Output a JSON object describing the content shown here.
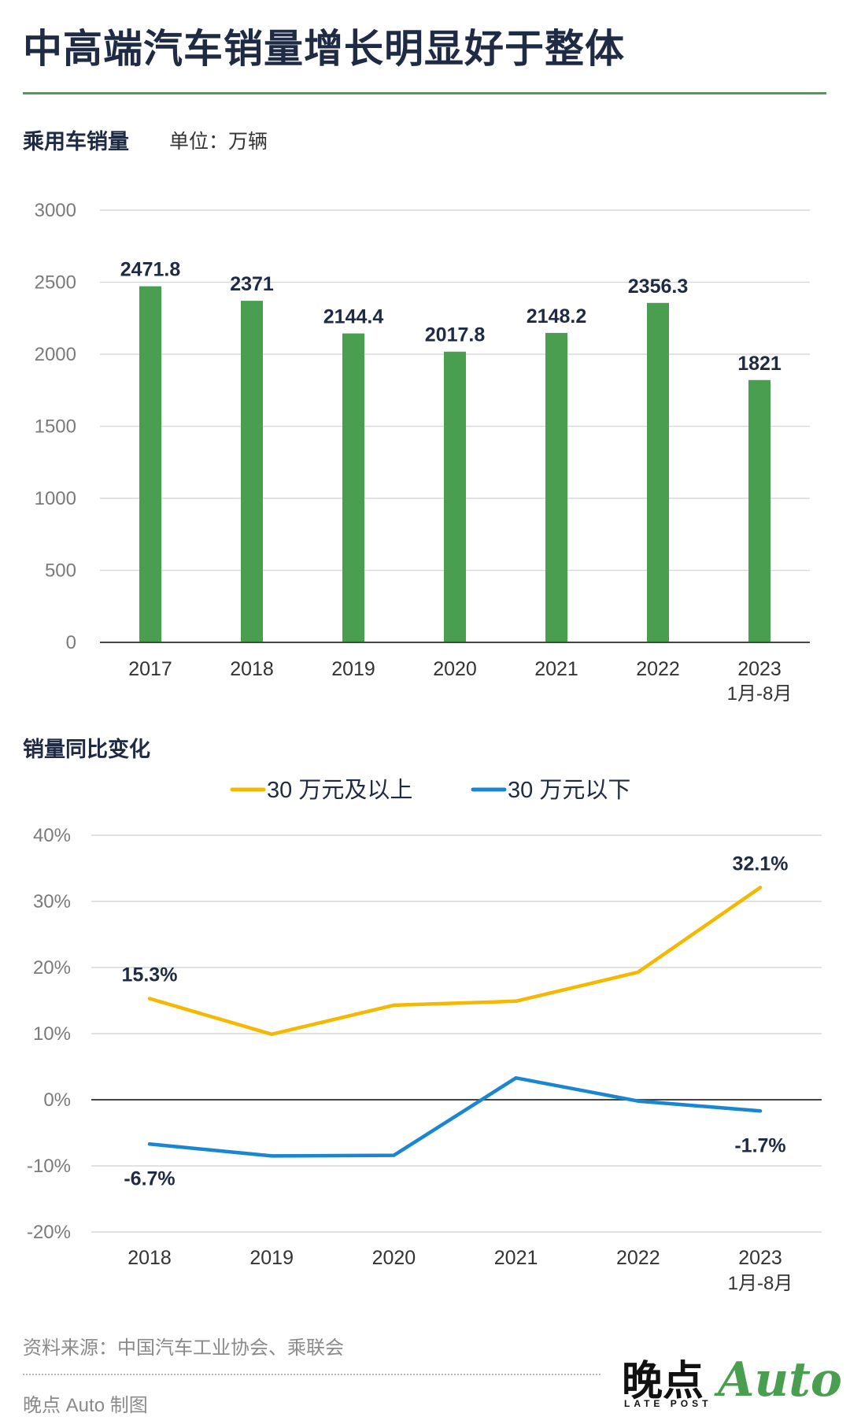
{
  "title": "中高端汽车销量增长明显好于整体",
  "colors": {
    "accent": "#4a9e4f",
    "bar": "#4a9e4f",
    "text": "#1f2a44"
  },
  "chart_data": [
    {
      "type": "bar",
      "title": "乘用车销量",
      "unit": "单位：万辆",
      "categories": [
        "2017",
        "2018",
        "2019",
        "2020",
        "2021",
        "2022",
        "2023"
      ],
      "category_sublabels": [
        "",
        "",
        "",
        "",
        "",
        "",
        "1月-8月"
      ],
      "values": [
        2471.8,
        2371,
        2144.4,
        2017.8,
        2148.2,
        2356.3,
        1821
      ],
      "value_labels": [
        "2471.8",
        "2371",
        "2144.4",
        "2017.8",
        "2148.2",
        "2356.3",
        "1821"
      ],
      "yticks": [
        0,
        500,
        1000,
        1500,
        2000,
        2500,
        3000
      ],
      "ytick_labels": [
        "0",
        "500",
        "1000",
        "1500",
        "2000",
        "2500",
        "3000"
      ],
      "ylim": [
        0,
        3000
      ],
      "grid": true
    },
    {
      "type": "line",
      "title": "销量同比变化",
      "categories": [
        "2018",
        "2019",
        "2020",
        "2021",
        "2022",
        "2023"
      ],
      "category_sublabels": [
        "",
        "",
        "",
        "",
        "",
        "1月-8月"
      ],
      "series": [
        {
          "name": "30 万元及以上",
          "color": "#f5b800",
          "values": [
            15.3,
            9.9,
            14.3,
            14.9,
            19.3,
            32.1
          ],
          "labels": [
            "15.3%",
            null,
            null,
            null,
            null,
            "32.1%"
          ]
        },
        {
          "name": "30 万元以下",
          "color": "#1a86d0",
          "values": [
            -6.7,
            -8.5,
            -8.4,
            3.3,
            -0.2,
            -1.7
          ],
          "labels": [
            "-6.7%",
            null,
            null,
            null,
            null,
            "-1.7%"
          ]
        }
      ],
      "yticks": [
        -20,
        -10,
        0,
        10,
        20,
        30,
        40
      ],
      "ytick_labels": [
        "-20%",
        "-10%",
        "0%",
        "10%",
        "20%",
        "30%",
        "40%"
      ],
      "ylim": [
        -20,
        40
      ],
      "legend": "top-center",
      "grid": true
    }
  ],
  "footer": {
    "source": "资料来源：中国汽车工业协会、乘联会",
    "credit": "晚点 Auto 制图"
  },
  "logo": {
    "main": "晚点",
    "sub": "LATE POST",
    "accent": "Auto"
  }
}
